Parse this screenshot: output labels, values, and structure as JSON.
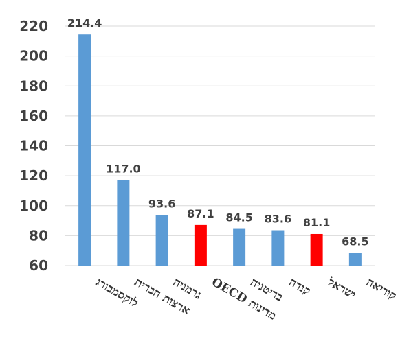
{
  "chart_data": {
    "type": "bar",
    "categories": [
      [
        "לוקסמבורג"
      ],
      [
        "ארצות הברית"
      ],
      [
        "גרמניה"
      ],
      [
        "מדינות OECD"
      ],
      [
        "בריטניה"
      ],
      [
        "קנדה"
      ],
      [
        "ישראל"
      ],
      [
        "קוריאה"
      ]
    ],
    "values": [
      214.4,
      117.0,
      93.6,
      87.1,
      84.5,
      83.6,
      81.1,
      68.5
    ],
    "data_labels": [
      "214.4",
      "117.0",
      "93.6",
      "87.1",
      "84.5",
      "83.6",
      "81.1",
      "68.5"
    ],
    "bar_colors": [
      "#5b9bd5",
      "#5b9bd5",
      "#5b9bd5",
      "#ff0000",
      "#5b9bd5",
      "#5b9bd5",
      "#ff0000",
      "#5b9bd5"
    ],
    "yticks": [
      60,
      80,
      100,
      120,
      140,
      160,
      180,
      200,
      220
    ],
    "ylim": [
      60,
      220
    ],
    "grid": true,
    "title": "",
    "xlabel": "",
    "ylabel": ""
  }
}
